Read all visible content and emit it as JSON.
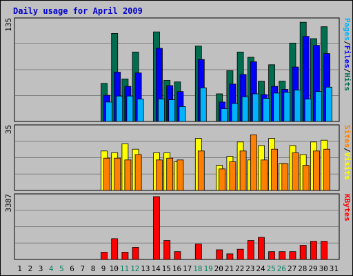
{
  "chart_data": {
    "title": "Daily usage for April 2009",
    "type": "bar",
    "categories": [
      "1",
      "2",
      "3",
      "4",
      "5",
      "6",
      "7",
      "8",
      "9",
      "10",
      "11",
      "12",
      "13",
      "14",
      "15",
      "16",
      "17",
      "18",
      "19",
      "20",
      "21",
      "22",
      "23",
      "24",
      "25",
      "26",
      "27",
      "28",
      "29",
      "30",
      "31"
    ],
    "weekend_days": [
      "4",
      "5",
      "11",
      "12",
      "18",
      "19",
      "25",
      "26"
    ],
    "panels": [
      {
        "id": "pages-files-hits",
        "ymax_label": "135",
        "ymax": 135,
        "legend": [
          "Pages",
          "/",
          "Files",
          "/",
          "Hits"
        ],
        "series": [
          {
            "name": "Hits",
            "color": "#006d4f",
            "values": [
              0,
              0,
              0,
              0,
              0,
              0,
              0,
              0,
              51,
              118,
              57,
              93,
              0,
              120,
              55,
              53,
              0,
              101,
              0,
              37,
              68,
              93,
              86,
              54,
              76,
              54,
              105,
              133,
              111,
              127,
              0
            ]
          },
          {
            "name": "Files",
            "color": "#0000ff",
            "values": [
              0,
              0,
              0,
              0,
              0,
              0,
              0,
              0,
              35,
              66,
              47,
              65,
              0,
              98,
              48,
              40,
              0,
              83,
              0,
              26,
              50,
              63,
              80,
              36,
              47,
              43,
              73,
              114,
              102,
              91,
              0
            ]
          },
          {
            "name": "Pages",
            "color": "#00b3ff",
            "values": [
              0,
              0,
              0,
              0,
              0,
              0,
              0,
              0,
              26,
              34,
              34,
              30,
              0,
              30,
              29,
              20,
              0,
              45,
              0,
              17,
              24,
              33,
              37,
              31,
              38,
              39,
              42,
              30,
              40,
              46,
              0
            ]
          }
        ]
      },
      {
        "id": "sites-visits",
        "ymax_label": "35",
        "ymax": 35,
        "legend": [
          "Sites",
          "/",
          "Visits"
        ],
        "series": [
          {
            "name": "Visits",
            "color": "#ffff00",
            "values": [
              0,
              0,
              0,
              0,
              0,
              0,
              0,
              0,
              22,
              21,
              26,
              23,
              0,
              21,
              21,
              16,
              0,
              29,
              0,
              14,
              19,
              27,
              17,
              25,
              29,
              15,
              25,
              20,
              27,
              28,
              0
            ]
          },
          {
            "name": "Sites",
            "color": "#ff8000",
            "values": [
              0,
              0,
              0,
              0,
              0,
              0,
              0,
              0,
              18,
              18,
              17,
              20,
              0,
              17,
              18,
              17,
              0,
              22,
              0,
              12,
              16,
              22,
              31,
              17,
              23,
              15,
              21,
              14,
              22,
              23,
              0
            ]
          }
        ]
      },
      {
        "id": "kbytes",
        "ymax_label": "3387",
        "ymax": 3387,
        "legend": [
          "KBytes"
        ],
        "series": [
          {
            "name": "KBytes",
            "color": "#ff0000",
            "values": [
              0,
              0,
              0,
              0,
              0,
              0,
              0,
              0,
              390,
              1120,
              390,
              650,
              0,
              3387,
              1020,
              420,
              0,
              830,
              0,
              520,
              300,
              550,
              1020,
              1190,
              420,
              420,
              420,
              760,
              980,
              980,
              0
            ]
          }
        ]
      }
    ]
  }
}
